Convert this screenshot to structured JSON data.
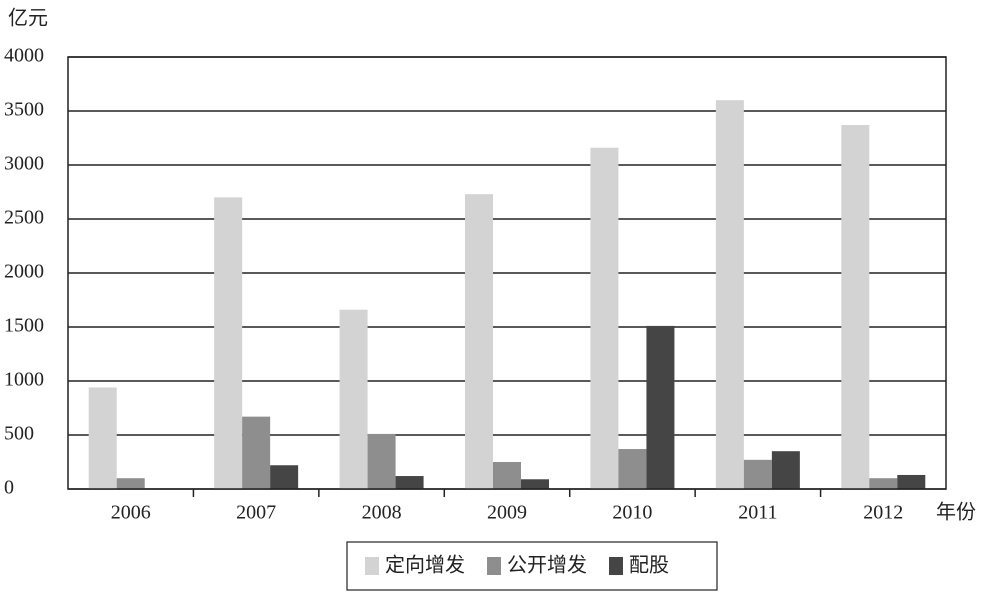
{
  "chart_data": {
    "type": "bar",
    "y_axis_label": "亿元",
    "x_axis_label": "年份",
    "categories": [
      "2006",
      "2007",
      "2008",
      "2009",
      "2010",
      "2011",
      "2012"
    ],
    "series": [
      {
        "name": "定向增发",
        "color": "#d3d3d3",
        "values": [
          940,
          2700,
          1660,
          2730,
          3160,
          3600,
          3370
        ]
      },
      {
        "name": "公开增发",
        "color": "#8e8e8e",
        "values": [
          100,
          670,
          510,
          250,
          370,
          270,
          100
        ]
      },
      {
        "name": "配股",
        "color": "#454545",
        "values": [
          0,
          220,
          120,
          90,
          1510,
          350,
          130
        ]
      }
    ],
    "ylim": [
      0,
      4000
    ],
    "yticks": [
      0,
      500,
      1000,
      1500,
      2000,
      2500,
      3000,
      3500,
      4000
    ],
    "grid": true,
    "legend": "bottom"
  }
}
